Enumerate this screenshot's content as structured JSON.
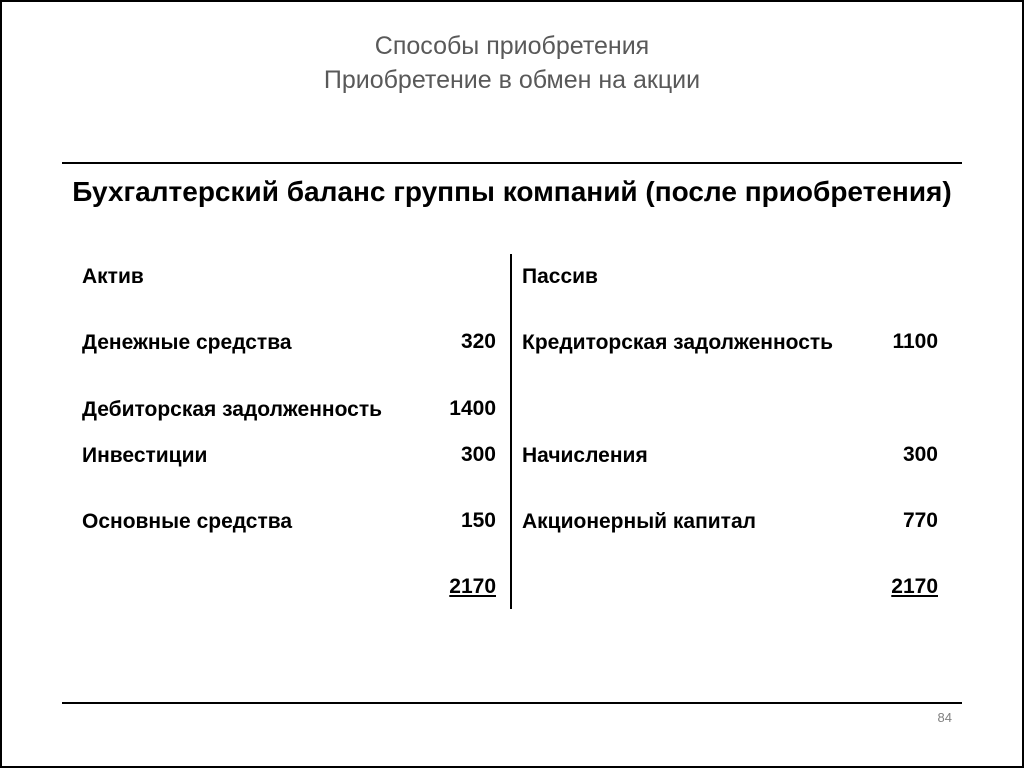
{
  "colors": {
    "background": "#ffffff",
    "text": "#000000",
    "title_text": "#595959",
    "rule": "#000000",
    "page_num": "#808080"
  },
  "typography": {
    "slide_title_fontsize": 25,
    "block_title_fontsize": 28,
    "body_fontsize": 21,
    "page_num_fontsize": 13,
    "font_family": "Arial"
  },
  "title_line1": "Способы приобретения",
  "title_line2": "Приобретение в обмен на акции",
  "block_title": "Бухгалтерский баланс группы компаний (после приобретения)",
  "page_number": "84",
  "balance": {
    "type": "table",
    "left_header": "Актив",
    "right_header": "Пассив",
    "rows": [
      {
        "left_label": "Денежные средства",
        "left_value": "320",
        "right_label": "Кредиторская задолженность",
        "right_value": "1100"
      },
      {
        "left_label": "Дебиторская задолженность",
        "left_value": "1400",
        "right_label": "",
        "right_value": ""
      },
      {
        "left_label": "Инвестиции",
        "left_value": "300",
        "right_label": "Начисления",
        "right_value": "300"
      },
      {
        "left_label": "Основные средства",
        "left_value": "150",
        "right_label": "Акционерный капитал",
        "right_value": "770"
      }
    ],
    "total": {
      "left_value": "2170",
      "right_value": "2170"
    }
  }
}
